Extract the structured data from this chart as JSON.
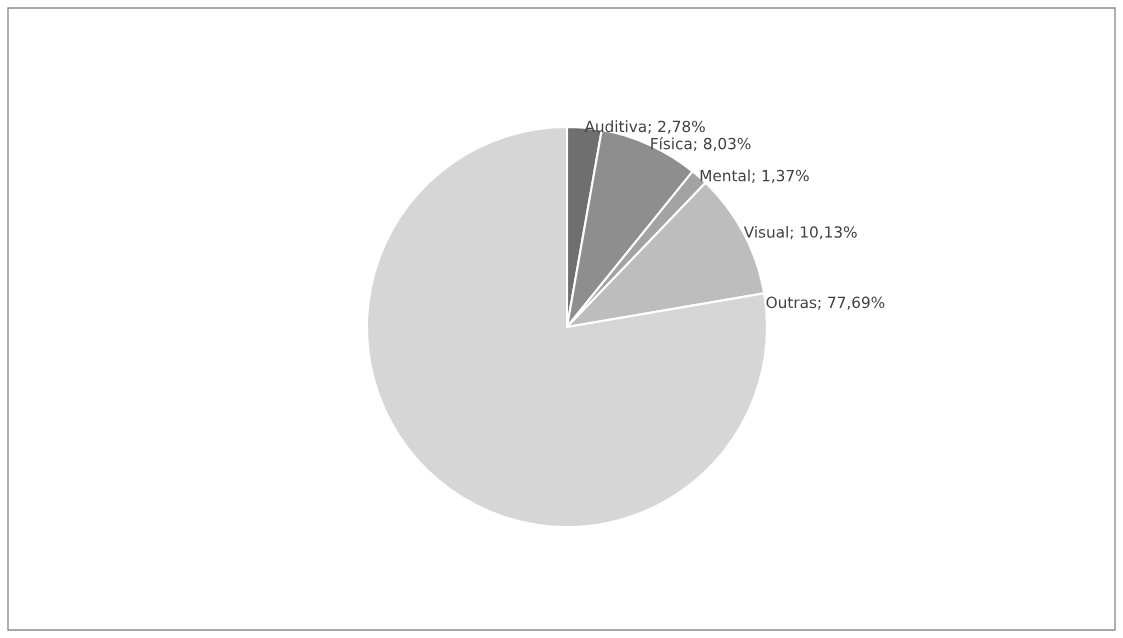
{
  "chart_data": {
    "type": "pie",
    "categories": [
      "Auditiva",
      "Física",
      "Mental",
      "Visual",
      "Outras"
    ],
    "values": [
      2.78,
      8.03,
      1.37,
      10.13,
      77.69
    ],
    "colors": [
      "#6f6f6f",
      "#8e8e8e",
      "#a3a3a3",
      "#bdbdbd",
      "#d6d6d6"
    ],
    "value_labels": [
      "2,78%",
      "8,03%",
      "1,37%",
      "10,13%",
      "77,69%"
    ],
    "legend": false
  }
}
